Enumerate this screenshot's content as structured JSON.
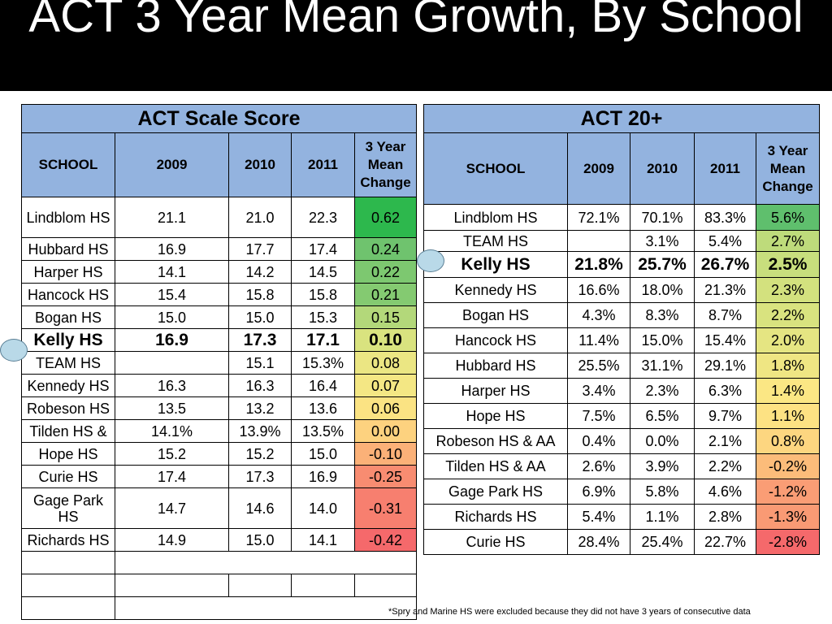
{
  "title": "ACT 3 Year Mean Growth, By School",
  "left_table": {
    "heading": "ACT Scale Score",
    "columns": [
      "SCHOOL",
      "2009",
      "2010",
      "2011",
      "3 Year Mean Change"
    ],
    "rows": [
      {
        "school": "Lindblom HS",
        "y2009": "21.1",
        "y2010": "21.0",
        "y2011": "22.3",
        "change": "0.62",
        "color": "#2db84d"
      },
      {
        "school": "Hubbard HS",
        "y2009": "16.9",
        "y2010": "17.7",
        "y2011": "17.4",
        "change": "0.24",
        "color": "#6fc36e"
      },
      {
        "school": "Harper HS",
        "y2009": "14.1",
        "y2010": "14.2",
        "y2011": "14.5",
        "change": "0.22",
        "color": "#7dc870"
      },
      {
        "school": "Hancock HS",
        "y2009": "15.4",
        "y2010": "15.8",
        "y2011": "15.8",
        "change": "0.21",
        "color": "#84ca71"
      },
      {
        "school": "Bogan HS",
        "y2009": "15.0",
        "y2010": "15.0",
        "y2011": "15.3",
        "change": "0.15",
        "color": "#b3d87a"
      },
      {
        "school": "Kelly HS",
        "y2009": "16.9",
        "y2010": "17.3",
        "y2011": "17.1",
        "change": "0.10",
        "color": "#d9e37f",
        "highlight": true
      },
      {
        "school": "TEAM HS",
        "y2009": "",
        "y2010": "15.1",
        "y2011": "15.3%",
        "change": "0.08",
        "color": "#ebe683"
      },
      {
        "school": "Kennedy HS",
        "y2009": "16.3",
        "y2010": "16.3",
        "y2011": "16.4",
        "change": "0.07",
        "color": "#f4e784"
      },
      {
        "school": "Robeson HS",
        "y2009": "13.5",
        "y2010": "13.2",
        "y2011": "13.6",
        "change": "0.06",
        "color": "#fbe383"
      },
      {
        "school": "Tilden HS &",
        "y2009": "14.1%",
        "y2010": "13.9%",
        "y2011": "13.5%",
        "change": "0.00",
        "color": "#fdd27f"
      },
      {
        "school": "Hope HS",
        "y2009": "15.2",
        "y2010": "15.2",
        "y2011": "15.0",
        "change": "-0.10",
        "color": "#fbb178"
      },
      {
        "school": "Curie HS",
        "y2009": "17.4",
        "y2010": "17.3",
        "y2011": "16.9",
        "change": "-0.25",
        "color": "#f88c71"
      },
      {
        "school": "Gage Park HS",
        "y2009": "14.7",
        "y2010": "14.6",
        "y2011": "14.0",
        "change": "-0.31",
        "color": "#f77f6f"
      },
      {
        "school": "Richards HS",
        "y2009": "14.9",
        "y2010": "15.0",
        "y2011": "14.1",
        "change": "-0.42",
        "color": "#f5696b"
      }
    ]
  },
  "right_table": {
    "heading": "ACT 20+",
    "columns": [
      "SCHOOL",
      "2009",
      "2010",
      "2011",
      "3 Year Mean Change"
    ],
    "rows": [
      {
        "school": "Lindblom HS",
        "y2009": "72.1%",
        "y2010": "70.1%",
        "y2011": "83.3%",
        "change": "5.6%",
        "color": "#5fbf6d"
      },
      {
        "school": "TEAM HS",
        "y2009": "",
        "y2010": "3.1%",
        "y2011": "5.4%",
        "change": "2.7%",
        "color": "#bedb7b"
      },
      {
        "school": "Kelly HS",
        "y2009": "21.8%",
        "y2010": "25.7%",
        "y2011": "26.7%",
        "change": "2.5%",
        "color": "#c8de7d",
        "highlight": true
      },
      {
        "school": "Kennedy HS",
        "y2009": "16.6%",
        "y2010": "18.0%",
        "y2011": "21.3%",
        "change": "2.3%",
        "color": "#d3e17e"
      },
      {
        "school": "Bogan HS",
        "y2009": "4.3%",
        "y2010": "8.3%",
        "y2011": "8.7%",
        "change": "2.2%",
        "color": "#d9e37f"
      },
      {
        "school": "Hancock HS",
        "y2009": "11.4%",
        "y2010": "15.0%",
        "y2011": "15.4%",
        "change": "2.0%",
        "color": "#e5e582"
      },
      {
        "school": "Hubbard HS",
        "y2009": "25.5%",
        "y2010": "31.1%",
        "y2011": "29.1%",
        "change": "1.8%",
        "color": "#efe683"
      },
      {
        "school": "Harper HS",
        "y2009": "3.4%",
        "y2010": "2.3%",
        "y2011": "6.3%",
        "change": "1.4%",
        "color": "#fbe784"
      },
      {
        "school": "Hope HS",
        "y2009": "7.5%",
        "y2010": "6.5%",
        "y2011": "9.7%",
        "change": "1.1%",
        "color": "#fde283"
      },
      {
        "school": "Robeson HS & AA",
        "y2009": "0.4%",
        "y2010": "0.0%",
        "y2011": "2.1%",
        "change": "0.8%",
        "color": "#fdd680"
      },
      {
        "school": "Tilden HS & AA",
        "y2009": "2.6%",
        "y2010": "3.9%",
        "y2011": "2.2%",
        "change": "-0.2%",
        "color": "#fcbc7a"
      },
      {
        "school": "Gage Park HS",
        "y2009": "6.9%",
        "y2010": "5.8%",
        "y2011": "4.6%",
        "change": "-1.2%",
        "color": "#fa9d75"
      },
      {
        "school": "Richards HS",
        "y2009": "5.4%",
        "y2010": "1.1%",
        "y2011": "2.8%",
        "change": "-1.3%",
        "color": "#f99a74"
      },
      {
        "school": "Curie HS",
        "y2009": "28.4%",
        "y2010": "25.4%",
        "y2011": "22.7%",
        "change": "-2.8%",
        "color": "#f5696b"
      }
    ]
  },
  "footnote": "*Spry and Marine HS were excluded because they did not have 3 years of consecutive data"
}
